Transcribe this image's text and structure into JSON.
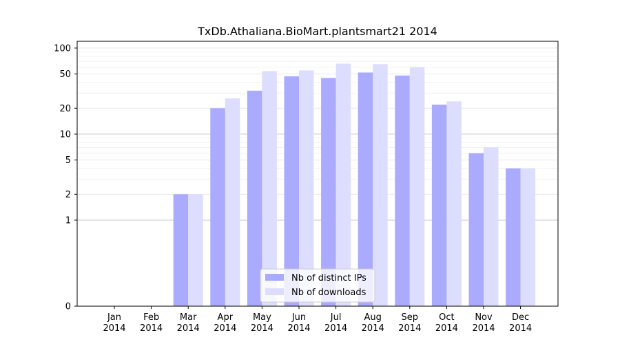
{
  "chart_data": {
    "type": "bar",
    "title": "TxDb.Athaliana.BioMart.plantsmart21 2014",
    "xlabel": "",
    "ylabel": "",
    "y_scale": "symlog",
    "ylim": [
      0,
      120
    ],
    "y_ticks": [
      0,
      1,
      2,
      5,
      10,
      20,
      50,
      100
    ],
    "categories": [
      [
        "Jan",
        "2014"
      ],
      [
        "Feb",
        "2014"
      ],
      [
        "Mar",
        "2014"
      ],
      [
        "Apr",
        "2014"
      ],
      [
        "May",
        "2014"
      ],
      [
        "Jun",
        "2014"
      ],
      [
        "Jul",
        "2014"
      ],
      [
        "Aug",
        "2014"
      ],
      [
        "Sep",
        "2014"
      ],
      [
        "Oct",
        "2014"
      ],
      [
        "Nov",
        "2014"
      ],
      [
        "Dec",
        "2014"
      ]
    ],
    "series": [
      {
        "name": "Nb of distinct IPs",
        "color": "#aaaaff",
        "values": [
          0,
          0,
          2,
          20,
          32,
          47,
          45,
          52,
          48,
          22,
          6,
          4
        ]
      },
      {
        "name": "Nb of downloads",
        "color": "#ddddff",
        "values": [
          0,
          0,
          2,
          26,
          54,
          55,
          66,
          65,
          60,
          24,
          7,
          4
        ]
      }
    ],
    "legend_position": "bottom-center",
    "grid": "horizontal"
  }
}
